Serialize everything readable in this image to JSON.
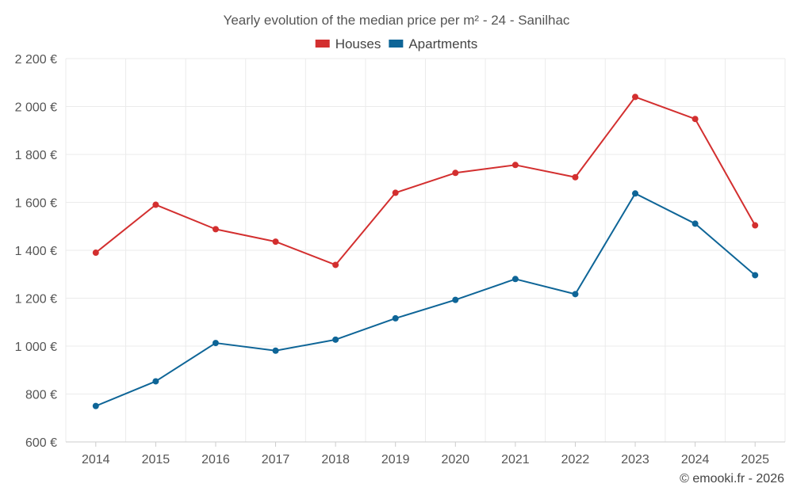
{
  "chart_data": {
    "type": "line",
    "title": "Yearly evolution of the median price per m² - 24 - Sanilhac",
    "xlabel": "",
    "ylabel": "",
    "categories": [
      "2014",
      "2015",
      "2016",
      "2017",
      "2018",
      "2019",
      "2020",
      "2021",
      "2022",
      "2023",
      "2024",
      "2025"
    ],
    "ylim": [
      600,
      2200
    ],
    "yticks": [
      600,
      800,
      1000,
      1200,
      1400,
      1600,
      1800,
      2000,
      2200
    ],
    "ytick_labels": [
      "600 €",
      "800 €",
      "1 000 €",
      "1 200 €",
      "1 400 €",
      "1 600 €",
      "1 800 €",
      "2 000 €",
      "2 200 €"
    ],
    "grid": true,
    "legend_position": "top-center",
    "series": [
      {
        "name": "Houses",
        "color": "#d32f2f",
        "values": [
          1390,
          1590,
          1488,
          1436,
          1339,
          1640,
          1723,
          1756,
          1705,
          2040,
          1948,
          1504
        ]
      },
      {
        "name": "Apartments",
        "color": "#0e6597",
        "values": [
          750,
          853,
          1013,
          981,
          1027,
          1116,
          1193,
          1280,
          1217,
          1637,
          1511,
          1296
        ]
      }
    ]
  },
  "credit": "© emooki.fr - 2026"
}
